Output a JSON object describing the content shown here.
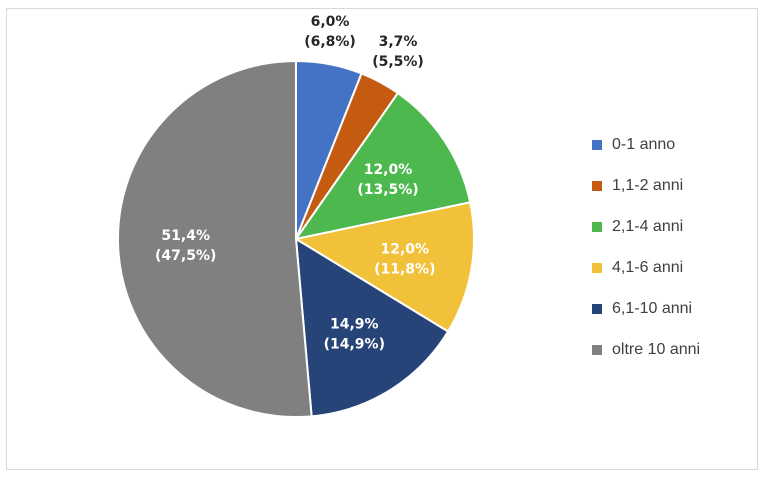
{
  "chart_data": {
    "type": "pie",
    "title": "",
    "categories": [
      "0-1 anno",
      "1,1-2 anni",
      "2,1-4 anni",
      "4,1-6 anni",
      "6,1-10 anni",
      "oltre 10 anni"
    ],
    "values": [
      6.0,
      3.7,
      12.0,
      12.0,
      14.9,
      51.4
    ],
    "comparison_values": [
      6.8,
      5.5,
      13.5,
      11.8,
      14.9,
      47.5
    ],
    "labels": [
      {
        "value": "6,0%",
        "comparison": "(6,8%)"
      },
      {
        "value": "3,7%",
        "comparison": "(5,5%)"
      },
      {
        "value": "12,0%",
        "comparison": "(13,5%)"
      },
      {
        "value": "12,0%",
        "comparison": "(11,8%)"
      },
      {
        "value": "14,9%",
        "comparison": "(14,9%)"
      },
      {
        "value": "51,4%",
        "comparison": "(47,5%)"
      }
    ],
    "colors": [
      "#4472C4",
      "#C55A11",
      "#4CB84E",
      "#F2C13A",
      "#264478",
      "#808080"
    ],
    "label_colors": [
      "#262626",
      "#262626",
      "#ffffff",
      "#ffffff",
      "#ffffff",
      "#ffffff"
    ],
    "label_placement": [
      "outside",
      "outside",
      "inside",
      "inside",
      "inside",
      "inside"
    ],
    "start_angle_deg": 0,
    "direction": "clockwise",
    "legend_position": "right"
  }
}
